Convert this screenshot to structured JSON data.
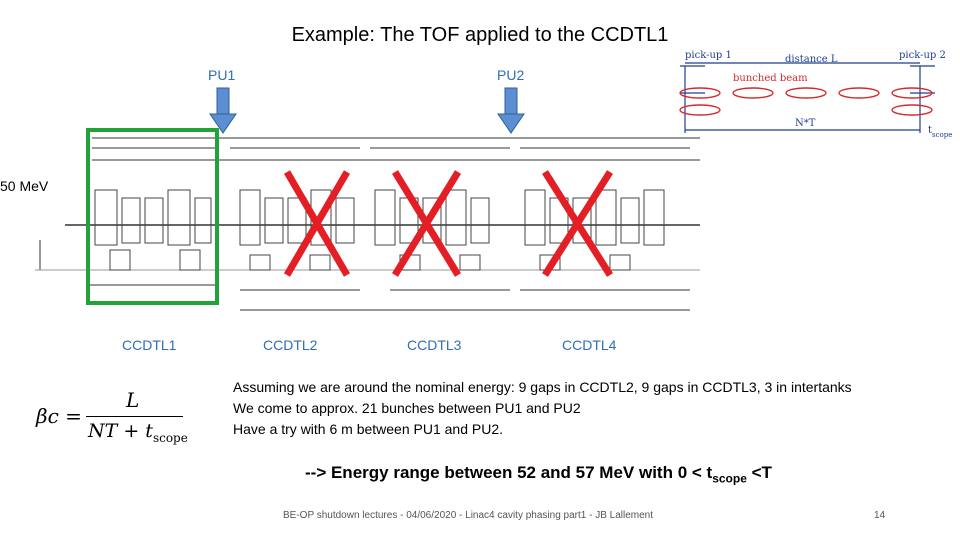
{
  "title": "Example: The TOF applied to the CCDTL1",
  "pickups": {
    "pu1": "PU1",
    "pu2": "PU2"
  },
  "beam_energy_label": "50 MeV",
  "tanks": [
    "CCDTL1",
    "CCDTL2",
    "CCDTL3",
    "CCDTL4"
  ],
  "schematic": {
    "pickup1": "pick-up 1",
    "pickup2": "pick-up 2",
    "distance": "distance L",
    "bunched_beam": "bunched beam",
    "nt": "N*T",
    "tscope": "t",
    "tscope_sub": "scope"
  },
  "formula": {
    "lhs": "βc =",
    "numerator": "L",
    "denominator": "NT + t",
    "denominator_sub": "scope"
  },
  "notes": [
    "Assuming we are around the nominal energy: 9 gaps in CCDTL2, 9 gaps in CCDTL3, 3 in intertanks",
    "We come to approx. 21 bunches between PU1 and PU2",
    "Have a try with 6 m between PU1 and PU2."
  ],
  "energy_line": {
    "prefix": "--> Energy range between 52 and 57 MeV with 0 < t",
    "sub": "scope",
    "suffix": " <T"
  },
  "footer": "BE-OP shutdown lectures - 04/06/2020 - Linac4 cavity phasing part1 - JB Lallement",
  "page_number": "14",
  "colors": {
    "accent": "#2f6fb3",
    "highlight": "#22a33a",
    "cross": "#e31e24",
    "beam": "#d42a2a"
  }
}
